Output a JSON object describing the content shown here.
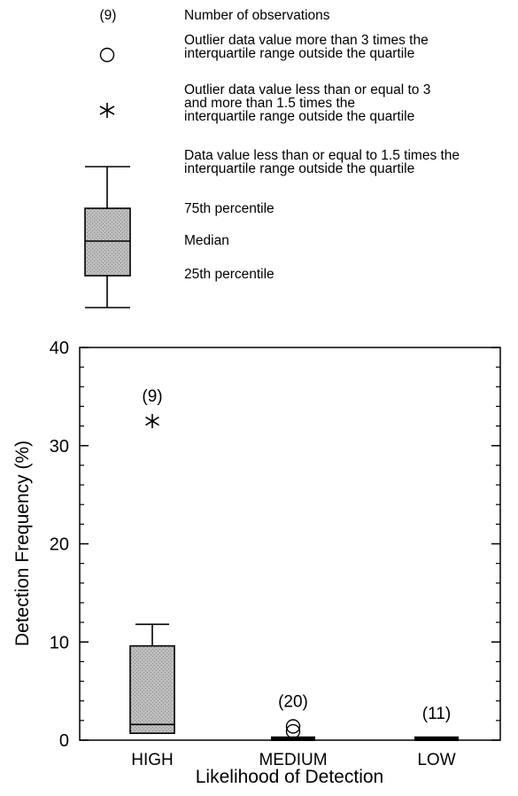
{
  "legend": {
    "count_symbol": "(9)",
    "count_label": "Number of observations",
    "outlier_far_label": "Outlier data value more than 3 times the\ninterquartile range outside the quartile",
    "outlier_near_label": "Outlier data value less than or equal to 3\nand more than 1.5 times the\ninterquartile range outside the quartile",
    "whisker_label": "Data value less than or equal to 1.5 times the\ninterquartile range outside the quartile",
    "p75_label": "75th percentile",
    "median_label": "Median",
    "p25_label": "25th percentile"
  },
  "chart_data": {
    "type": "boxplot",
    "xlabel": "Likelihood of Detection",
    "ylabel": "Detection Frequency (%)",
    "ylim": [
      0,
      40
    ],
    "yticks": [
      0,
      10,
      20,
      30,
      40
    ],
    "grid": false,
    "categories": [
      "HIGH",
      "MEDIUM",
      "LOW"
    ],
    "boxes": [
      {
        "category": "HIGH",
        "n_label": "(9)",
        "whisker_low": 0.7,
        "q1": 0.7,
        "median": 1.6,
        "q3": 9.6,
        "whisker_high": 11.8,
        "outliers_near": [
          32.5
        ],
        "outliers_far": []
      },
      {
        "category": "MEDIUM",
        "n_label": "(20)",
        "whisker_low": 0,
        "q1": 0,
        "median": 0,
        "q3": 0.2,
        "whisker_high": 0.2,
        "outliers_near": [],
        "outliers_far": [
          0.9,
          1.4
        ]
      },
      {
        "category": "LOW",
        "n_label": "(11)",
        "whisker_low": 0,
        "q1": 0,
        "median": 0,
        "q3": 0.2,
        "whisker_high": 0.2,
        "outliers_near": [],
        "outliers_far": []
      }
    ]
  }
}
